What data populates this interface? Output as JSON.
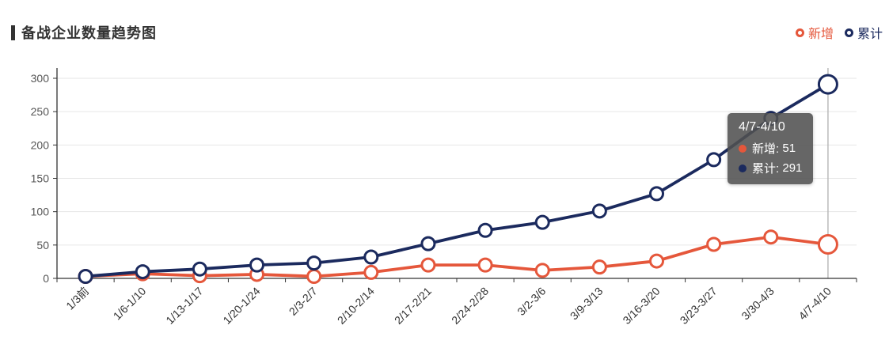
{
  "title": {
    "text": "备战企业数量趋势图"
  },
  "legend": {
    "items": [
      {
        "label": "新增",
        "color": "#e5573b"
      },
      {
        "label": "累计",
        "color": "#1b2a5e"
      }
    ]
  },
  "tooltip": {
    "title": "4/7-4/10",
    "rows": [
      {
        "label": "新增",
        "value": "51",
        "color": "#e5573b"
      },
      {
        "label": "累计",
        "value": "291",
        "color": "#1b2a5e"
      }
    ]
  },
  "chart_data": {
    "type": "line",
    "title": "备战企业数量趋势图",
    "categories": [
      "1/3前",
      "1/6-1/10",
      "1/13-1/17",
      "1/20-1/24",
      "2/3-2/7",
      "2/10-2/14",
      "2/17-2/21",
      "2/24-2/28",
      "3/2-3/6",
      "3/9-3/13",
      "3/16-3/20",
      "3/23-3/27",
      "3/30-4/3",
      "4/7-4/10"
    ],
    "series": [
      {
        "name": "新增",
        "color": "#e5573b",
        "values": [
          3,
          7,
          4,
          6,
          3,
          9,
          20,
          20,
          12,
          17,
          26,
          51,
          62,
          51
        ]
      },
      {
        "name": "累计",
        "color": "#1b2a5e",
        "values": [
          3,
          10,
          14,
          20,
          23,
          32,
          52,
          72,
          84,
          101,
          127,
          178,
          240,
          291
        ]
      }
    ],
    "xlabel": "",
    "ylabel": "",
    "ylim": [
      0,
      300
    ],
    "yticks": [
      0,
      50,
      100,
      150,
      200,
      250,
      300
    ],
    "grid": true,
    "legend_position": "top-right",
    "x_label_rotation": 45,
    "highlight": {
      "category_index": 13,
      "axis_pointer": true
    }
  },
  "colors": {
    "axis": "#333333",
    "grid": "#e6e6e6",
    "axis_label": "#555555",
    "x_label": "#333333",
    "pointer": "#b5b5b5",
    "point_fill": "#ffffff",
    "tooltip_bg": "rgba(81,81,81,0.88)"
  }
}
